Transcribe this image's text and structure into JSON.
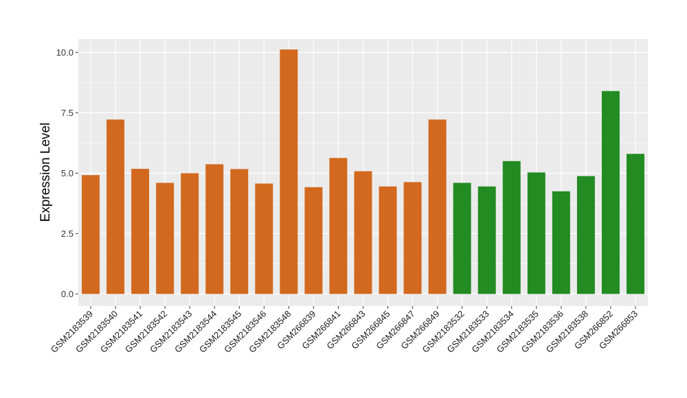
{
  "chart_data": {
    "type": "bar",
    "title": "",
    "xlabel": "",
    "ylabel": "Expression Level",
    "ylim": [
      -0.5,
      10.55
    ],
    "yticks": [
      0.0,
      2.5,
      5.0,
      7.5,
      10.0
    ],
    "ytick_labels": [
      "0.0",
      "2.5",
      "5.0",
      "7.5",
      "10.0"
    ],
    "grid": true,
    "legend": "none",
    "categories": [
      "GSM2183539",
      "GSM2183540",
      "GSM2183541",
      "GSM2183542",
      "GSM2183543",
      "GSM2183544",
      "GSM2183545",
      "GSM2183546",
      "GSM2183548",
      "GSM266839",
      "GSM266841",
      "GSM266843",
      "GSM266845",
      "GSM266847",
      "GSM266849",
      "GSM2183532",
      "GSM2183533",
      "GSM2183534",
      "GSM2183535",
      "GSM2183536",
      "GSM2183538",
      "GSM266852",
      "GSM266853"
    ],
    "values": [
      4.92,
      7.22,
      5.18,
      4.6,
      5.0,
      5.37,
      5.17,
      4.57,
      10.12,
      4.42,
      5.63,
      5.08,
      4.45,
      4.63,
      7.22,
      4.6,
      4.45,
      5.5,
      5.03,
      4.25,
      4.88,
      8.4,
      5.8
    ],
    "colors": [
      "#D2691E",
      "#D2691E",
      "#D2691E",
      "#D2691E",
      "#D2691E",
      "#D2691E",
      "#D2691E",
      "#D2691E",
      "#D2691E",
      "#D2691E",
      "#D2691E",
      "#D2691E",
      "#D2691E",
      "#D2691E",
      "#D2691E",
      "#228B22",
      "#228B22",
      "#228B22",
      "#228B22",
      "#228B22",
      "#228B22",
      "#228B22",
      "#228B22"
    ],
    "panel_background": "#EBEBEB",
    "grid_color": "#FFFFFF"
  }
}
